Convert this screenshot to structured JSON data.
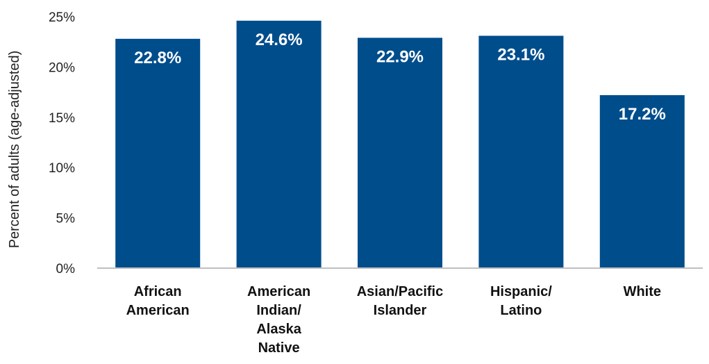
{
  "chart_data": {
    "type": "bar",
    "categories": [
      [
        "African",
        "American"
      ],
      [
        "American",
        "Indian/",
        "Alaska",
        "Native"
      ],
      [
        "Asian/Pacific",
        "Islander"
      ],
      [
        "Hispanic/",
        "Latino"
      ],
      [
        "White"
      ]
    ],
    "values": [
      22.8,
      24.6,
      22.9,
      23.1,
      17.2
    ],
    "data_labels": [
      "22.8%",
      "24.6%",
      "22.9%",
      "23.1%",
      "17.2%"
    ],
    "ylabel": "Percent of adults (age-adjusted)",
    "xlabel": "",
    "ylim": [
      0,
      25
    ],
    "yticks": [
      0,
      5,
      10,
      15,
      20,
      25
    ],
    "ytick_labels": [
      "0%",
      "5%",
      "10%",
      "15%",
      "20%",
      "25%"
    ],
    "grid": false,
    "legend": "none",
    "bar_color": "#004D8C"
  }
}
